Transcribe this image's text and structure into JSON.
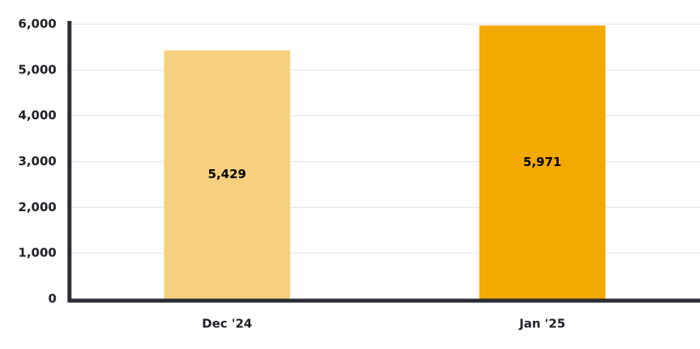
{
  "chart_data": {
    "type": "bar",
    "categories": [
      "Dec '24",
      "Jan '25"
    ],
    "values": [
      5429,
      5971
    ],
    "value_labels": [
      "5,429",
      "5,971"
    ],
    "colors": [
      "#f6d07f",
      "#f2a900"
    ],
    "ylim": [
      0,
      6000
    ],
    "yticks": [
      0,
      {
        "value": 1000,
        "label": "1,000"
      },
      {
        "value": 2000,
        "label": "2,000"
      },
      {
        "value": 3000,
        "label": "3,000"
      },
      {
        "value": 4000,
        "label": "4,000"
      },
      {
        "value": 5000,
        "label": "5,000"
      },
      {
        "value": 6000,
        "label": "6,000"
      }
    ],
    "grid": true
  }
}
